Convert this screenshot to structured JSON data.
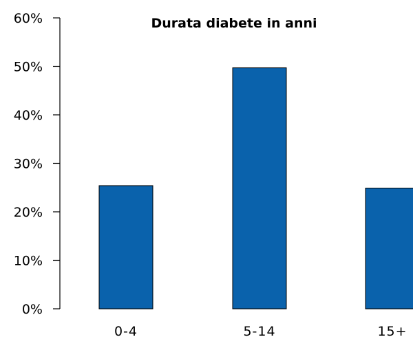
{
  "chart_data": {
    "type": "bar",
    "title": "Durata diabete in anni",
    "categories": [
      "0-4",
      "5-14",
      "15+"
    ],
    "values": [
      25.4,
      49.7,
      24.9
    ],
    "ylim": [
      0,
      60
    ],
    "yticks": [
      0,
      10,
      20,
      30,
      40,
      50,
      60
    ],
    "ytick_labels": [
      "0%",
      "10%",
      "20%",
      "30%",
      "40%",
      "50%",
      "60%"
    ],
    "bar_color": "#0a62ac",
    "grid": false,
    "legend": "none"
  }
}
